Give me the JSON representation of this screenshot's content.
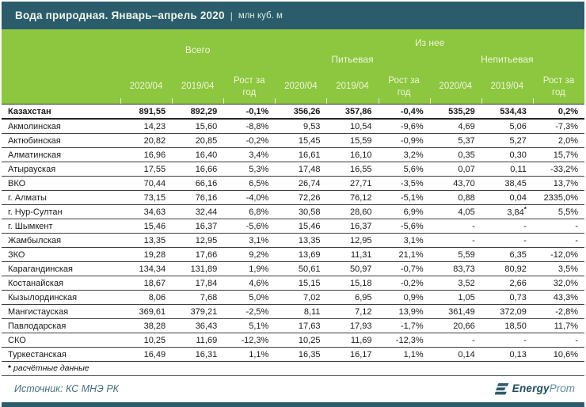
{
  "title": {
    "main": "Вода природная. Январь–апрель 2020",
    "separator": "|",
    "unit": "млн куб. м"
  },
  "chart_data": {
    "type": "table",
    "title": "Вода природная. Январь–апрель 2020 (млн куб. м)",
    "column_groups": {
      "total": "Всего",
      "of_it": "Из нее",
      "drinking": "Питьевая",
      "non_drinking": "Непитьевая"
    },
    "sub_columns": [
      "2020/04",
      "2019/04",
      "Рост за год"
    ],
    "rows": [
      {
        "region": "Казахстан",
        "bold": true,
        "values": [
          "891,55",
          "892,29",
          "-0,1%",
          "356,26",
          "357,86",
          "-0,4%",
          "535,29",
          "534,43",
          "0,2%"
        ]
      },
      {
        "region": "Акмолинская",
        "values": [
          "14,23",
          "15,60",
          "-8,8%",
          "9,53",
          "10,54",
          "-9,6%",
          "4,69",
          "5,06",
          "-7,3%"
        ]
      },
      {
        "region": "Актюбинская",
        "values": [
          "20,82",
          "20,85",
          "-0,2%",
          "15,45",
          "15,59",
          "-0,9%",
          "5,37",
          "5,27",
          "2,0%"
        ]
      },
      {
        "region": "Алматинская",
        "values": [
          "16,96",
          "16,40",
          "3,4%",
          "16,61",
          "16,10",
          "3,2%",
          "0,35",
          "0,30",
          "15,7%"
        ]
      },
      {
        "region": "Атырауская",
        "values": [
          "17,55",
          "16,66",
          "5,3%",
          "17,48",
          "16,55",
          "5,6%",
          "0,07",
          "0,11",
          "-33,2%"
        ]
      },
      {
        "region": "ВКО",
        "values": [
          "70,44",
          "66,16",
          "6,5%",
          "26,74",
          "27,71",
          "-3,5%",
          "43,70",
          "38,45",
          "13,7%"
        ]
      },
      {
        "region": "г. Алматы",
        "values": [
          "73,15",
          "76,16",
          "-4,0%",
          "72,26",
          "76,12",
          "-5,1%",
          "0,88",
          "0,04",
          "2335,0%"
        ]
      },
      {
        "region": "г. Нур-Султан",
        "values": [
          "34,63",
          "32,44",
          "6,8%",
          "30,58",
          "28,60",
          "6,9%",
          "4,05",
          "3,84*",
          "5,5%"
        ]
      },
      {
        "region": "г. Шымкент",
        "values": [
          "15,46",
          "16,37",
          "-5,6%",
          "15,46",
          "16,37",
          "-5,6%",
          "-",
          "-",
          "-"
        ]
      },
      {
        "region": "Жамбылская",
        "values": [
          "13,35",
          "12,95",
          "3,1%",
          "13,35",
          "12,95",
          "3,1%",
          "-",
          "-",
          "-"
        ]
      },
      {
        "region": "ЗКО",
        "values": [
          "19,28",
          "17,66",
          "9,2%",
          "13,69",
          "11,31",
          "21,1%",
          "5,59",
          "6,35",
          "-12,0%"
        ]
      },
      {
        "region": "Карагандинская",
        "values": [
          "134,34",
          "131,89",
          "1,9%",
          "50,61",
          "50,97",
          "-0,7%",
          "83,73",
          "80,92",
          "3,5%"
        ]
      },
      {
        "region": "Костанайская",
        "values": [
          "18,67",
          "17,84",
          "4,6%",
          "15,15",
          "15,18",
          "-0,2%",
          "3,52",
          "2,66",
          "32,0%"
        ]
      },
      {
        "region": "Кызылординская",
        "values": [
          "8,06",
          "7,68",
          "5,0%",
          "7,02",
          "6,95",
          "0,9%",
          "1,05",
          "0,73",
          "43,3%"
        ]
      },
      {
        "region": "Мангистауская",
        "values": [
          "369,61",
          "379,21",
          "-2,5%",
          "8,11",
          "7,12",
          "13,9%",
          "361,49",
          "372,09",
          "-2,8%"
        ]
      },
      {
        "region": "Павлодарская",
        "values": [
          "38,28",
          "36,43",
          "5,1%",
          "17,63",
          "17,93",
          "-1,7%",
          "20,66",
          "18,50",
          "11,7%"
        ]
      },
      {
        "region": "СКО",
        "values": [
          "10,25",
          "11,69",
          "-12,3%",
          "10,25",
          "11,69",
          "-12,3%",
          "-",
          "-",
          "-"
        ]
      },
      {
        "region": "Туркестанская",
        "values": [
          "16,49",
          "16,31",
          "1,1%",
          "16,35",
          "16,17",
          "1,1%",
          "0,14",
          "0,13",
          "10,6%"
        ]
      }
    ]
  },
  "footnote": {
    "marker": "*",
    "text": "расчётные данные"
  },
  "source": "Источник: КС МНЭ РК",
  "logo": {
    "bold_part": "Energy",
    "light_part": "Prom"
  },
  "colors": {
    "teal": "#2a5c6b",
    "green": "#8dc63f",
    "headtext": "#edf7da",
    "srctext": "#44717f"
  }
}
